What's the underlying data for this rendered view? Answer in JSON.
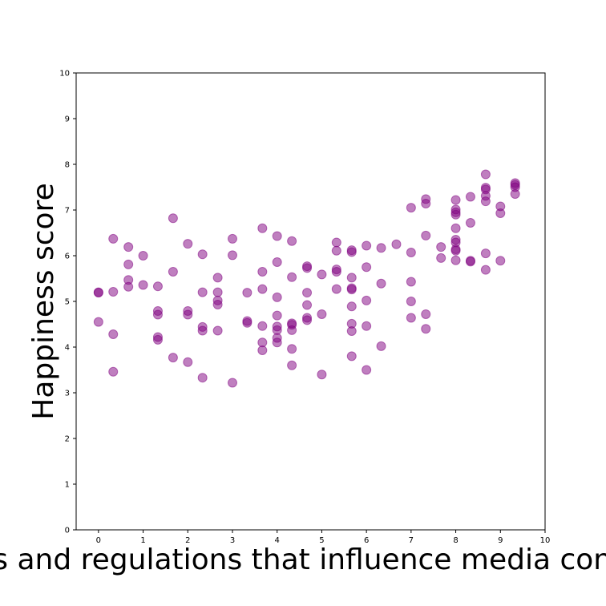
{
  "chart_data": {
    "type": "scatter",
    "xlabel": "Laws and regulations that influence media content",
    "ylabel": "Happiness score",
    "xlim": [
      -0.5,
      10
    ],
    "ylim": [
      0,
      10
    ],
    "xticks": [
      "0",
      "1",
      "2",
      "3",
      "4",
      "5",
      "6",
      "7",
      "8",
      "9",
      "10"
    ],
    "yticks": [
      "0",
      "1",
      "2",
      "3",
      "4",
      "5",
      "6",
      "7",
      "8",
      "9",
      "10"
    ],
    "grid": false,
    "marker_color": "#800080",
    "marker_alpha": 0.5,
    "points": [
      [
        0,
        5.19
      ],
      [
        0,
        5.2
      ],
      [
        0,
        4.55
      ],
      [
        0.33,
        6.37
      ],
      [
        0.33,
        5.21
      ],
      [
        0.33,
        4.28
      ],
      [
        0.33,
        3.46
      ],
      [
        0.67,
        6.19
      ],
      [
        0.67,
        5.81
      ],
      [
        0.67,
        5.47
      ],
      [
        0.67,
        5.32
      ],
      [
        1,
        6.0
      ],
      [
        1,
        5.36
      ],
      [
        1.33,
        5.33
      ],
      [
        1.33,
        4.79
      ],
      [
        1.33,
        4.71
      ],
      [
        1.33,
        4.22
      ],
      [
        1.33,
        4.16
      ],
      [
        1.67,
        6.82
      ],
      [
        1.67,
        5.65
      ],
      [
        1.67,
        3.77
      ],
      [
        2,
        6.26
      ],
      [
        2,
        4.79
      ],
      [
        2,
        4.71
      ],
      [
        2,
        3.67
      ],
      [
        2.33,
        6.03
      ],
      [
        2.33,
        5.2
      ],
      [
        2.33,
        4.44
      ],
      [
        2.33,
        4.36
      ],
      [
        2.33,
        3.33
      ],
      [
        2.67,
        5.52
      ],
      [
        2.67,
        5.2
      ],
      [
        2.67,
        5.02
      ],
      [
        2.67,
        4.93
      ],
      [
        2.67,
        4.36
      ],
      [
        3,
        6.37
      ],
      [
        3,
        6.01
      ],
      [
        3,
        3.22
      ],
      [
        3.33,
        5.19
      ],
      [
        3.33,
        4.57
      ],
      [
        3.33,
        4.53
      ],
      [
        3.67,
        6.6
      ],
      [
        3.67,
        5.65
      ],
      [
        3.67,
        5.27
      ],
      [
        3.67,
        4.46
      ],
      [
        3.67,
        4.1
      ],
      [
        3.67,
        3.93
      ],
      [
        4,
        6.43
      ],
      [
        4,
        5.86
      ],
      [
        4,
        5.09
      ],
      [
        4,
        4.69
      ],
      [
        4,
        4.45
      ],
      [
        4,
        4.37
      ],
      [
        4,
        4.2
      ],
      [
        4,
        4.1
      ],
      [
        4.33,
        6.32
      ],
      [
        4.33,
        5.53
      ],
      [
        4.33,
        4.52
      ],
      [
        4.33,
        4.49
      ],
      [
        4.33,
        4.37
      ],
      [
        4.33,
        3.96
      ],
      [
        4.33,
        3.6
      ],
      [
        4.67,
        5.77
      ],
      [
        4.67,
        5.73
      ],
      [
        4.67,
        5.19
      ],
      [
        4.67,
        4.92
      ],
      [
        4.67,
        4.64
      ],
      [
        4.67,
        4.59
      ],
      [
        5,
        5.59
      ],
      [
        5,
        4.72
      ],
      [
        5,
        3.4
      ],
      [
        5.33,
        6.29
      ],
      [
        5.33,
        6.11
      ],
      [
        5.33,
        5.7
      ],
      [
        5.33,
        5.65
      ],
      [
        5.33,
        5.27
      ],
      [
        5.67,
        6.12
      ],
      [
        5.67,
        6.08
      ],
      [
        5.67,
        5.52
      ],
      [
        5.67,
        5.29
      ],
      [
        5.67,
        5.26
      ],
      [
        5.67,
        4.89
      ],
      [
        5.67,
        4.51
      ],
      [
        5.67,
        4.35
      ],
      [
        5.67,
        3.8
      ],
      [
        6,
        6.22
      ],
      [
        6,
        5.75
      ],
      [
        6,
        5.02
      ],
      [
        6,
        4.46
      ],
      [
        6,
        3.5
      ],
      [
        6.33,
        6.17
      ],
      [
        6.33,
        5.39
      ],
      [
        6.33,
        4.02
      ],
      [
        6.67,
        6.25
      ],
      [
        7,
        7.05
      ],
      [
        7,
        6.07
      ],
      [
        7,
        5.43
      ],
      [
        7,
        5.0
      ],
      [
        7,
        4.64
      ],
      [
        7.33,
        7.24
      ],
      [
        7.33,
        7.14
      ],
      [
        7.33,
        6.44
      ],
      [
        7.33,
        4.72
      ],
      [
        7.33,
        4.4
      ],
      [
        7.67,
        6.19
      ],
      [
        7.67,
        5.95
      ],
      [
        8,
        7.22
      ],
      [
        8,
        7.01
      ],
      [
        8,
        6.95
      ],
      [
        8,
        6.9
      ],
      [
        8,
        6.6
      ],
      [
        8,
        6.35
      ],
      [
        8,
        6.29
      ],
      [
        8,
        6.14
      ],
      [
        8,
        6.11
      ],
      [
        8,
        5.9
      ],
      [
        8.33,
        7.29
      ],
      [
        8.33,
        6.72
      ],
      [
        8.33,
        5.89
      ],
      [
        8.33,
        5.87
      ],
      [
        8.67,
        7.78
      ],
      [
        8.67,
        7.49
      ],
      [
        8.67,
        7.45
      ],
      [
        8.67,
        7.31
      ],
      [
        8.67,
        7.19
      ],
      [
        8.67,
        6.05
      ],
      [
        8.67,
        5.69
      ],
      [
        9,
        7.08
      ],
      [
        9,
        6.93
      ],
      [
        9,
        5.89
      ],
      [
        9.33,
        7.59
      ],
      [
        9.33,
        7.55
      ],
      [
        9.33,
        7.5
      ],
      [
        9.33,
        7.35
      ]
    ]
  }
}
